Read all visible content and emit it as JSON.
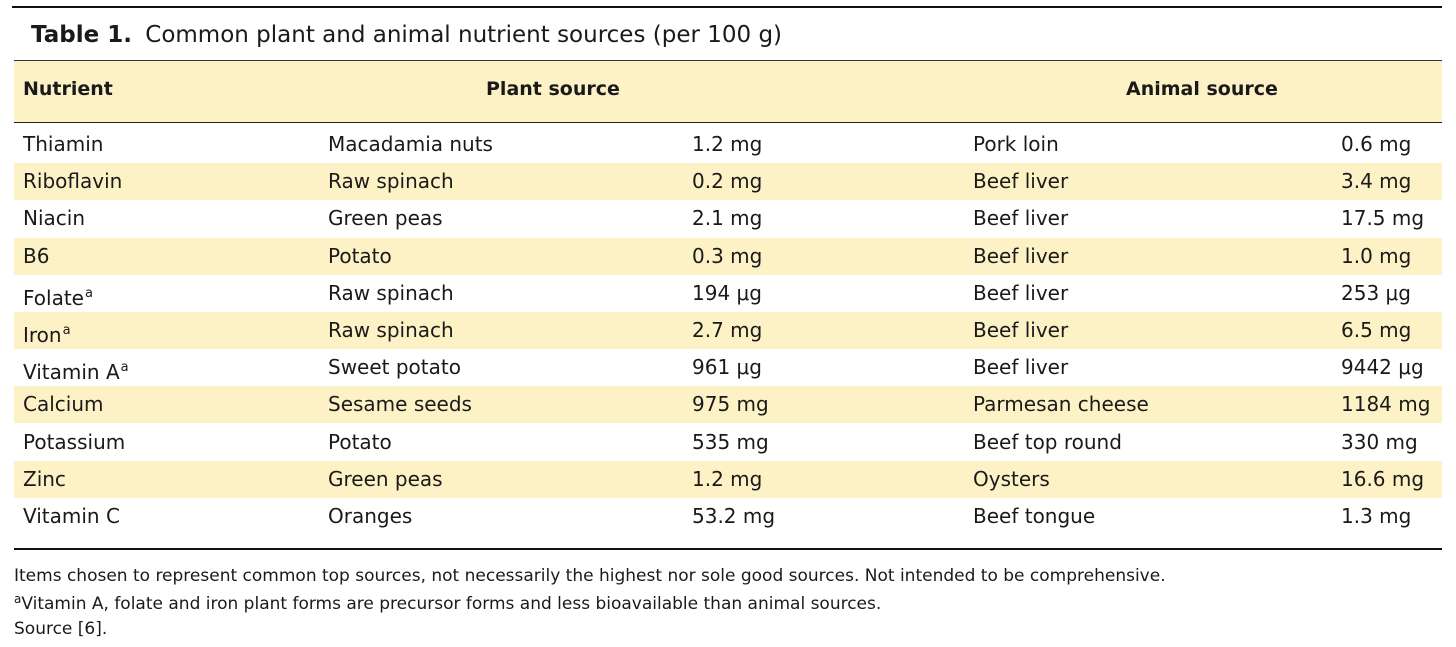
{
  "caption": {
    "label": "Table 1.",
    "title": "Common plant and animal nutrient sources (per 100 g)"
  },
  "headers": {
    "nutrient": "Nutrient",
    "plant": "Plant source",
    "animal": "Animal source"
  },
  "rows": [
    {
      "nutrient": "Thiamin",
      "footnote": "",
      "plant_source": "Macadamia nuts",
      "plant_value": "1.2 mg",
      "animal_source": "Pork loin",
      "animal_value": "0.6 mg"
    },
    {
      "nutrient": "Riboflavin",
      "footnote": "",
      "plant_source": "Raw spinach",
      "plant_value": "0.2 mg",
      "animal_source": "Beef liver",
      "animal_value": "3.4 mg"
    },
    {
      "nutrient": "Niacin",
      "footnote": "",
      "plant_source": "Green peas",
      "plant_value": "2.1 mg",
      "animal_source": "Beef liver",
      "animal_value": "17.5 mg"
    },
    {
      "nutrient": "B6",
      "footnote": "",
      "plant_source": "Potato",
      "plant_value": "0.3 mg",
      "animal_source": "Beef liver",
      "animal_value": "1.0 mg"
    },
    {
      "nutrient": "Folate",
      "footnote": "a",
      "plant_source": "Raw spinach",
      "plant_value": "194 μg",
      "animal_source": "Beef liver",
      "animal_value": "253 μg"
    },
    {
      "nutrient": "Iron",
      "footnote": "a",
      "plant_source": "Raw spinach",
      "plant_value": "2.7 mg",
      "animal_source": "Beef liver",
      "animal_value": "6.5 mg"
    },
    {
      "nutrient": "Vitamin A",
      "footnote": "a",
      "plant_source": "Sweet potato",
      "plant_value": "961 μg",
      "animal_source": "Beef liver",
      "animal_value": "9442 μg"
    },
    {
      "nutrient": "Calcium",
      "footnote": "",
      "plant_source": "Sesame seeds",
      "plant_value": "975 mg",
      "animal_source": "Parmesan cheese",
      "animal_value": "1184 mg"
    },
    {
      "nutrient": "Potassium",
      "footnote": "",
      "plant_source": "Potato",
      "plant_value": "535 mg",
      "animal_source": "Beef top round",
      "animal_value": "330 mg"
    },
    {
      "nutrient": "Zinc",
      "footnote": "",
      "plant_source": "Green peas",
      "plant_value": "1.2 mg",
      "animal_source": "Oysters",
      "animal_value": "16.6 mg"
    },
    {
      "nutrient": "Vitamin C",
      "footnote": "",
      "plant_source": "Oranges",
      "plant_value": "53.2 mg",
      "animal_source": "Beef tongue",
      "animal_value": "1.3 mg"
    }
  ],
  "notes": {
    "line1": "Items chosen to represent common top sources, not necessarily the highest nor sole good sources. Not intended to be comprehensive.",
    "line2_mark": "a",
    "line2": "Vitamin A, folate and iron plant forms are precursor forms and less bioavailable than animal sources.",
    "line3": "Source [6]."
  },
  "colors": {
    "band": "#fdf1c6",
    "rule": "#111111"
  }
}
